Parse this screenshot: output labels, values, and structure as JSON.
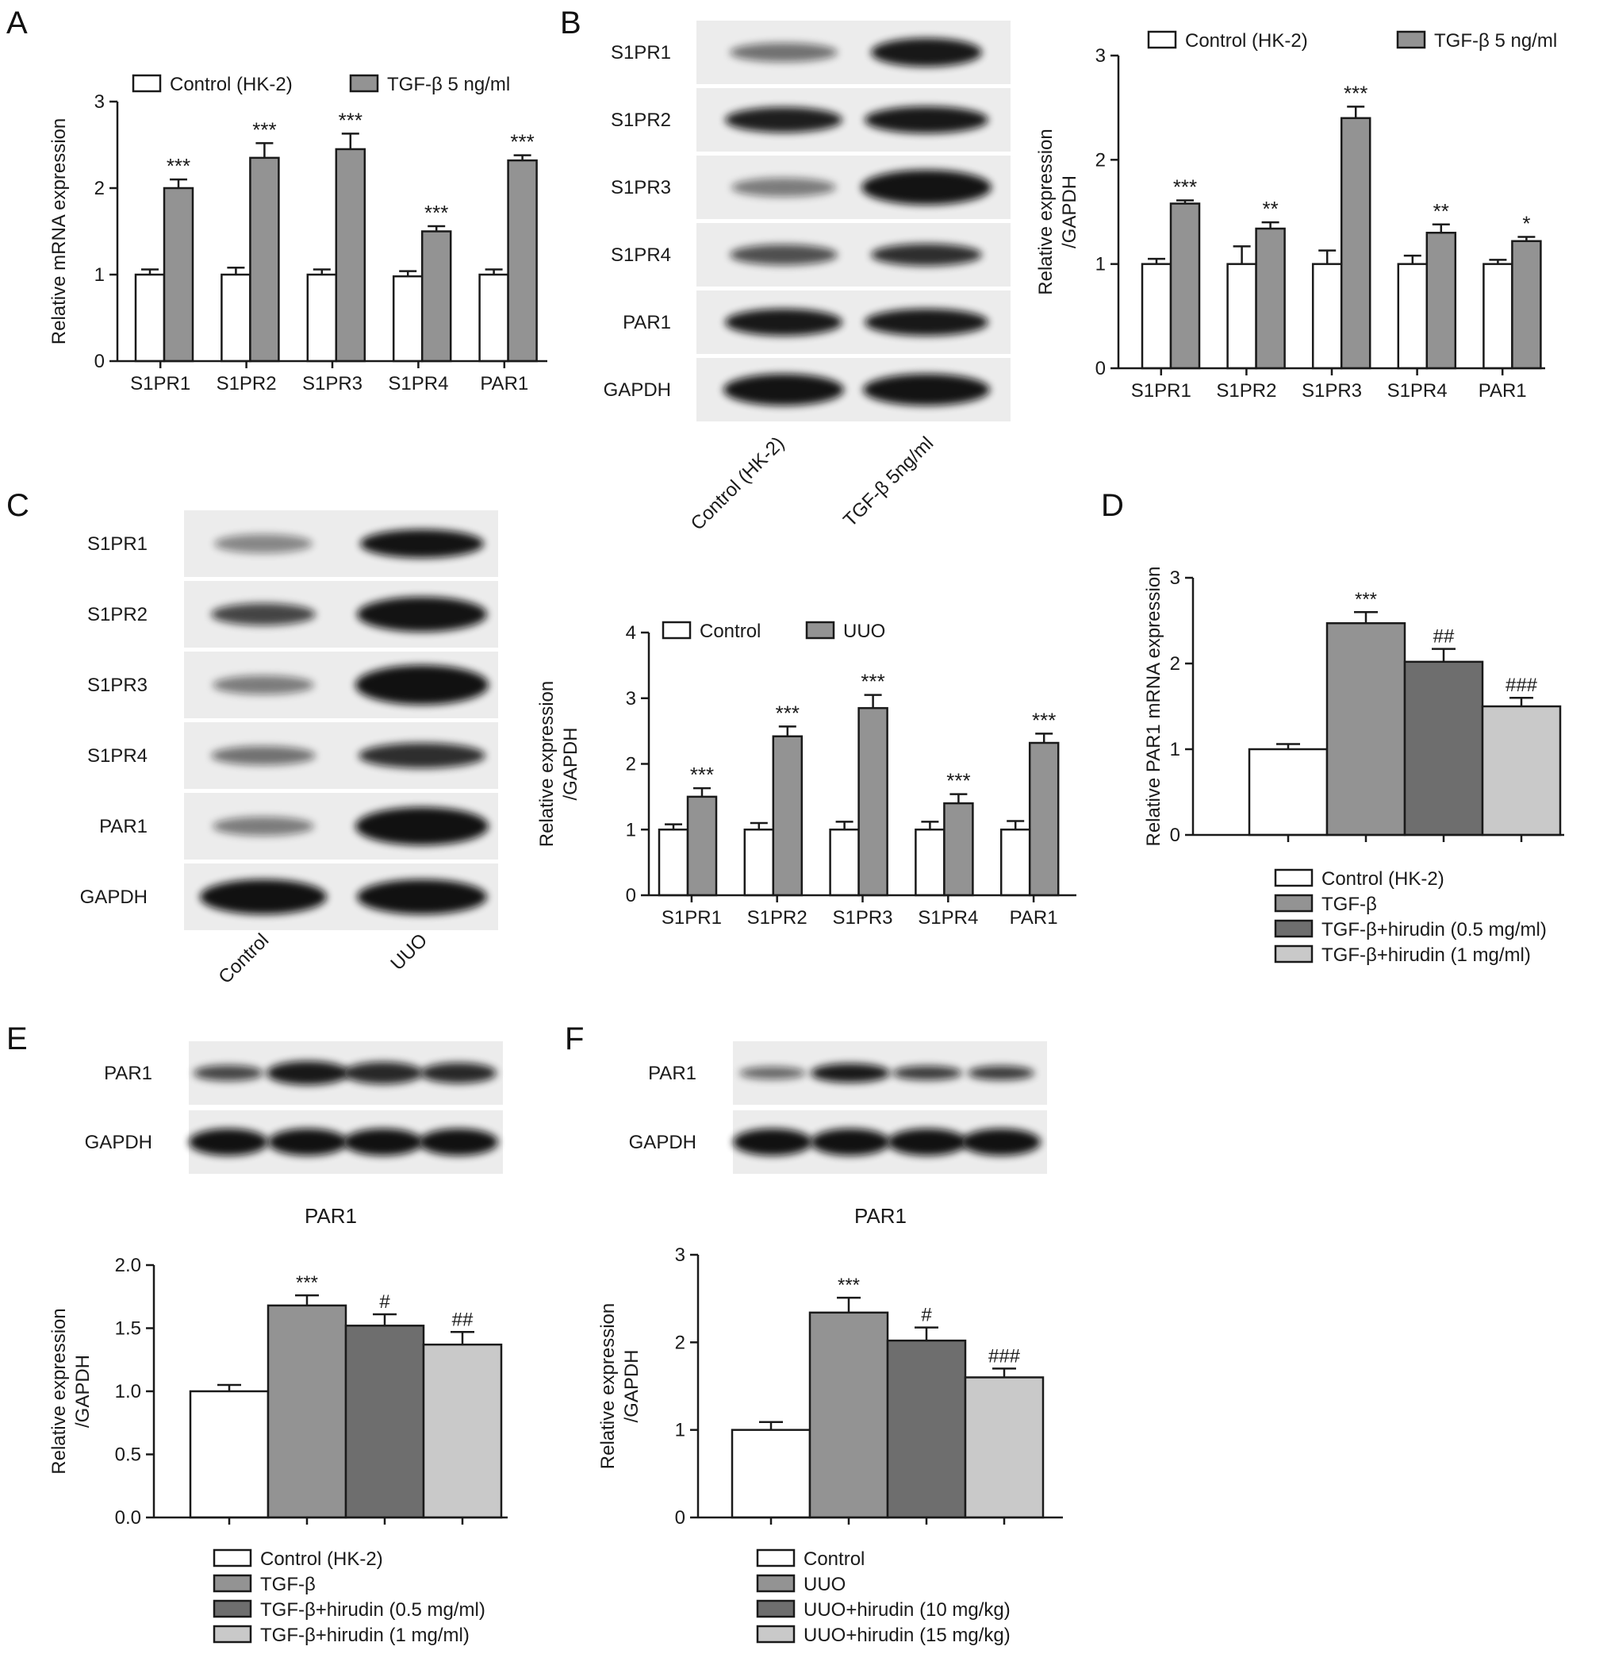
{
  "colors": {
    "control": "#ffffff",
    "treat": "#939393",
    "dose_low": "#6e6e6e",
    "dose_high": "#c9c9c9",
    "axis": "#1a1a1a"
  },
  "panels": {
    "A": "A",
    "B": "B",
    "C": "C",
    "D": "D",
    "E": "E",
    "F": "F"
  },
  "blots": {
    "B": {
      "rows": [
        "S1PR1",
        "S1PR2",
        "S1PR3",
        "S1PR4",
        "PAR1",
        "GAPDH"
      ],
      "lanes": [
        "Control (HK-2)",
        "TGF-β 5ng/ml"
      ]
    },
    "C": {
      "rows": [
        "S1PR1",
        "S1PR2",
        "S1PR3",
        "S1PR4",
        "PAR1",
        "GAPDH"
      ],
      "lanes": [
        "Control",
        "UUO"
      ]
    },
    "E": {
      "rows": [
        "PAR1",
        "GAPDH"
      ]
    },
    "F": {
      "rows": [
        "PAR1",
        "GAPDH"
      ]
    }
  },
  "chart_data": [
    {
      "id": "A",
      "type": "bar",
      "categories": [
        "S1PR1",
        "S1PR2",
        "S1PR3",
        "S1PR4",
        "PAR1"
      ],
      "series": [
        {
          "name": "Control (HK-2)",
          "values": [
            1.0,
            1.0,
            1.0,
            0.98,
            1.0
          ],
          "errors": [
            0.06,
            0.08,
            0.06,
            0.06,
            0.06
          ]
        },
        {
          "name": "TGF-β 5 ng/ml",
          "values": [
            2.0,
            2.35,
            2.45,
            1.5,
            2.32
          ],
          "errors": [
            0.1,
            0.17,
            0.18,
            0.06,
            0.06
          ]
        }
      ],
      "annotations": [
        [
          "",
          "***"
        ],
        [
          "",
          "***"
        ],
        [
          "",
          "***"
        ],
        [
          "",
          "***"
        ],
        [
          "",
          "***"
        ]
      ],
      "ylabel": "Relative mRNA expression",
      "ylim": [
        0,
        3
      ],
      "yticks": [
        "0",
        "1",
        "2",
        "3"
      ],
      "legend": "top"
    },
    {
      "id": "B",
      "type": "bar",
      "categories": [
        "S1PR1",
        "S1PR2",
        "S1PR3",
        "S1PR4",
        "PAR1"
      ],
      "series": [
        {
          "name": "Control (HK-2)",
          "values": [
            1.0,
            1.0,
            1.0,
            1.0,
            1.0
          ],
          "errors": [
            0.05,
            0.17,
            0.13,
            0.08,
            0.04
          ]
        },
        {
          "name": "TGF-β 5 ng/ml",
          "values": [
            1.58,
            1.34,
            2.4,
            1.3,
            1.22
          ],
          "errors": [
            0.03,
            0.06,
            0.11,
            0.08,
            0.04
          ]
        }
      ],
      "annotations": [
        [
          "",
          "***"
        ],
        [
          "",
          "**"
        ],
        [
          "",
          "***"
        ],
        [
          "",
          "**"
        ],
        [
          "",
          "*"
        ]
      ],
      "ylabel": "Relative expression /GAPDH",
      "ylim": [
        0,
        3
      ],
      "yticks": [
        "0",
        "1",
        "2",
        "3"
      ],
      "legend": "top"
    },
    {
      "id": "C",
      "type": "bar",
      "categories": [
        "S1PR1",
        "S1PR2",
        "S1PR3",
        "S1PR4",
        "PAR1"
      ],
      "series": [
        {
          "name": "Control",
          "values": [
            1.0,
            1.0,
            1.0,
            1.0,
            1.0
          ],
          "errors": [
            0.08,
            0.1,
            0.12,
            0.12,
            0.13
          ]
        },
        {
          "name": "UUO",
          "values": [
            1.5,
            2.42,
            2.85,
            1.4,
            2.32
          ],
          "errors": [
            0.13,
            0.15,
            0.2,
            0.14,
            0.14
          ]
        }
      ],
      "annotations": [
        [
          "",
          "***"
        ],
        [
          "",
          "***"
        ],
        [
          "",
          "***"
        ],
        [
          "",
          "***"
        ],
        [
          "",
          "***"
        ]
      ],
      "ylabel": "Relative expression /GAPDH",
      "ylim": [
        0,
        4
      ],
      "yticks": [
        "0",
        "1",
        "2",
        "3",
        "4"
      ],
      "legend": "top"
    },
    {
      "id": "D",
      "type": "bar",
      "categories": [
        "Control (HK-2)",
        "TGF-β",
        "TGF-β+hirudin (0.5 mg/ml)",
        "TGF-β+hirudin (1 mg/ml)"
      ],
      "values": [
        1.0,
        2.47,
        2.02,
        1.5
      ],
      "errors": [
        0.06,
        0.13,
        0.15,
        0.1
      ],
      "annotations": [
        "",
        "***",
        "##",
        "###"
      ],
      "ylabel": "Relative PAR1 mRNA expression",
      "ylim": [
        0,
        3
      ],
      "yticks": [
        "0",
        "1",
        "2",
        "3"
      ],
      "legend": "bottom"
    },
    {
      "id": "E",
      "type": "bar",
      "title": "PAR1",
      "categories": [
        "Control (HK-2)",
        "TGF-β",
        "TGF-β+hirudin (0.5 mg/ml)",
        "TGF-β+hirudin (1 mg/ml)"
      ],
      "values": [
        1.0,
        1.68,
        1.52,
        1.37
      ],
      "errors": [
        0.05,
        0.08,
        0.09,
        0.1
      ],
      "annotations": [
        "",
        "***",
        "#",
        "##"
      ],
      "ylabel": "Relative expression /GAPDH",
      "ylim": [
        0,
        2
      ],
      "yticks": [
        "0.0",
        "0.5",
        "1.0",
        "1.5",
        "2.0"
      ],
      "legend": "bottom"
    },
    {
      "id": "F",
      "type": "bar",
      "title": "PAR1",
      "categories": [
        "Control",
        "UUO",
        "UUO+hirudin (10 mg/kg)",
        "UUO+hirudin (15 mg/kg)"
      ],
      "values": [
        1.0,
        2.34,
        2.02,
        1.6
      ],
      "errors": [
        0.09,
        0.17,
        0.15,
        0.1
      ],
      "annotations": [
        "",
        "***",
        "#",
        "###"
      ],
      "ylabel": "Relative expression /GAPDH",
      "ylim": [
        0,
        3
      ],
      "yticks": [
        "0",
        "1",
        "2",
        "3"
      ],
      "legend": "bottom"
    }
  ]
}
